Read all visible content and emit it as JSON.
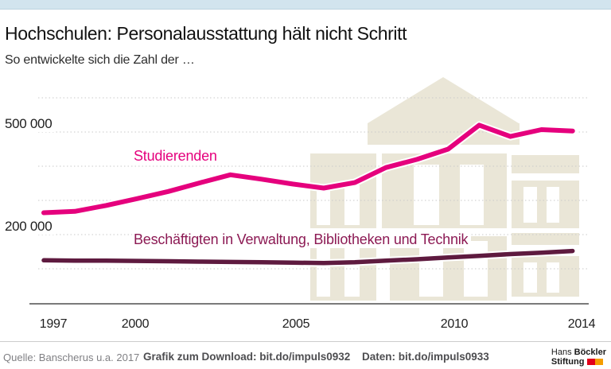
{
  "header": {
    "title": "Hochschulen: Personalausstattung hält nicht Schritt",
    "subtitle": "So entwickelte sich die Zahl der …"
  },
  "chart_data": {
    "type": "line",
    "x": [
      1997,
      1998,
      1999,
      2000,
      2001,
      2002,
      2003,
      2004,
      2005,
      2006,
      2007,
      2008,
      2009,
      2010,
      2011,
      2012,
      2013,
      2014
    ],
    "series": [
      {
        "name": "Studierenden",
        "color": "#e5007d",
        "values": [
          264000,
          268000,
          285000,
          305000,
          326000,
          351000,
          375000,
          362000,
          348000,
          336000,
          352000,
          396000,
          420000,
          450000,
          520000,
          487000,
          507000,
          503000
        ]
      },
      {
        "name": "Beschäftigten in Verwaltung, Bibliotheken und Technik",
        "color": "#5e1a3f",
        "label_color": "#8c1a54",
        "values": [
          125000,
          124000,
          124000,
          123000,
          122000,
          121000,
          120000,
          119000,
          118000,
          117000,
          119000,
          124000,
          128000,
          133000,
          138000,
          143000,
          147000,
          152000
        ]
      }
    ],
    "ylim": [
      0,
      620000
    ],
    "ygrid_values": [
      600000,
      500000,
      400000,
      300000,
      200000,
      100000
    ],
    "ytick_labels": [
      {
        "value": 500000,
        "label": "500 000"
      },
      {
        "value": 200000,
        "label": "200 000"
      }
    ],
    "xtick_labels": [
      "1997",
      "2000",
      "2005",
      "2010",
      "2014"
    ],
    "grid_style": "dotted",
    "legend_position": "inline-labels"
  },
  "colors": {
    "accent_pink": "#e5007d",
    "staff_line": "#5e1a3f",
    "staff_label": "#8c1a54",
    "watermark_beige": "#eae6d7",
    "top_bar_blue": "#d2e4ee",
    "grid_gray": "#c9c9c9",
    "axis_black": "#2b2b2b"
  },
  "footer": {
    "source": "Quelle: Banscherus u.a. 2017",
    "download_label": "Grafik zum Download: bit.do/impuls0932",
    "data_label": "Daten: bit.do/impuls0933",
    "logo": {
      "name_regular": "Hans",
      "name_bold": "Böckler",
      "line2_bold": "Stiftung",
      "flag_red": "#e2001a",
      "flag_orange": "#f59c00"
    }
  }
}
